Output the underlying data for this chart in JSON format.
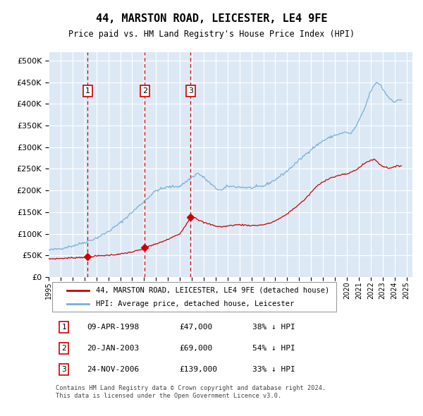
{
  "title": "44, MARSTON ROAD, LEICESTER, LE4 9FE",
  "subtitle": "Price paid vs. HM Land Registry's House Price Index (HPI)",
  "plot_bg_color": "#dce9f5",
  "ylim": [
    0,
    520000
  ],
  "yticks": [
    0,
    50000,
    100000,
    150000,
    200000,
    250000,
    300000,
    350000,
    400000,
    450000,
    500000
  ],
  "xlim_start": 1995.3,
  "xlim_end": 2025.5,
  "xticks": [
    1995,
    1996,
    1997,
    1998,
    1999,
    2000,
    2001,
    2002,
    2003,
    2004,
    2005,
    2006,
    2007,
    2008,
    2009,
    2010,
    2011,
    2012,
    2013,
    2014,
    2015,
    2016,
    2017,
    2018,
    2019,
    2020,
    2021,
    2022,
    2023,
    2024,
    2025
  ],
  "hpi_color": "#7aadd4",
  "price_color": "#cc0000",
  "vline_color": "#cc0000",
  "box_color": "#cc0000",
  "transactions": [
    {
      "date": 1998.27,
      "price": 47000,
      "label": "1"
    },
    {
      "date": 2003.05,
      "price": 69000,
      "label": "2"
    },
    {
      "date": 2006.9,
      "price": 139000,
      "label": "3"
    }
  ],
  "table_rows": [
    {
      "num": "1",
      "date": "09-APR-1998",
      "price": "£47,000",
      "hpi": "38% ↓ HPI"
    },
    {
      "num": "2",
      "date": "20-JAN-2003",
      "price": "£69,000",
      "hpi": "54% ↓ HPI"
    },
    {
      "num": "3",
      "date": "24-NOV-2006",
      "price": "£139,000",
      "hpi": "33% ↓ HPI"
    }
  ],
  "legend_entries": [
    "44, MARSTON ROAD, LEICESTER, LE4 9FE (detached house)",
    "HPI: Average price, detached house, Leicester"
  ],
  "footnote": "Contains HM Land Registry data © Crown copyright and database right 2024.\nThis data is licensed under the Open Government Licence v3.0."
}
